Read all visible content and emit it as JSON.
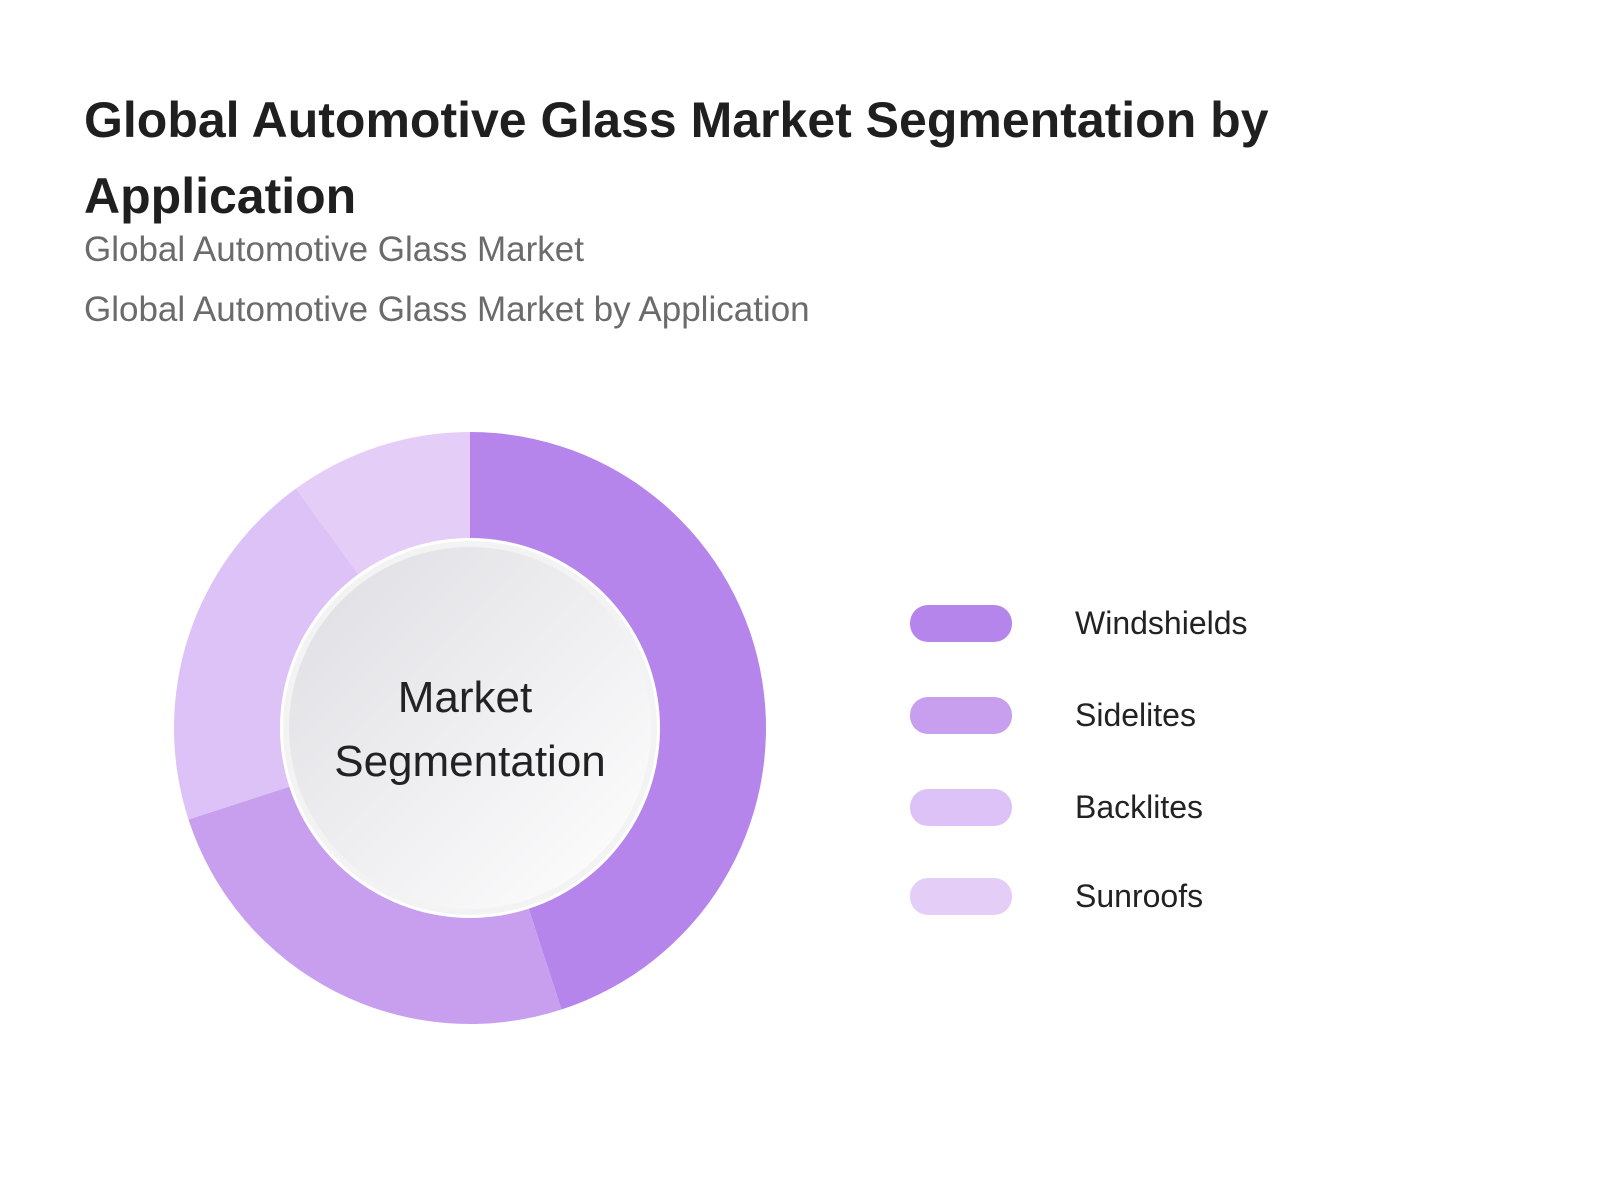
{
  "title": "Global Automotive Glass Market Segmentation by Application",
  "subtitles": [
    "Global Automotive Glass Market",
    "Global Automotive Glass Market by Application"
  ],
  "chart_data": {
    "type": "pie",
    "variant": "donut",
    "center_label": [
      "Market",
      "Segmentation"
    ],
    "categories": [
      "Windshields",
      "Sidelites",
      "Backlites",
      "Sunroofs"
    ],
    "values": [
      45,
      25,
      20,
      10
    ],
    "colors": [
      "#b685ec",
      "#c89eee",
      "#dcc2f6",
      "#e4cdf7"
    ],
    "legend_position": "right"
  }
}
